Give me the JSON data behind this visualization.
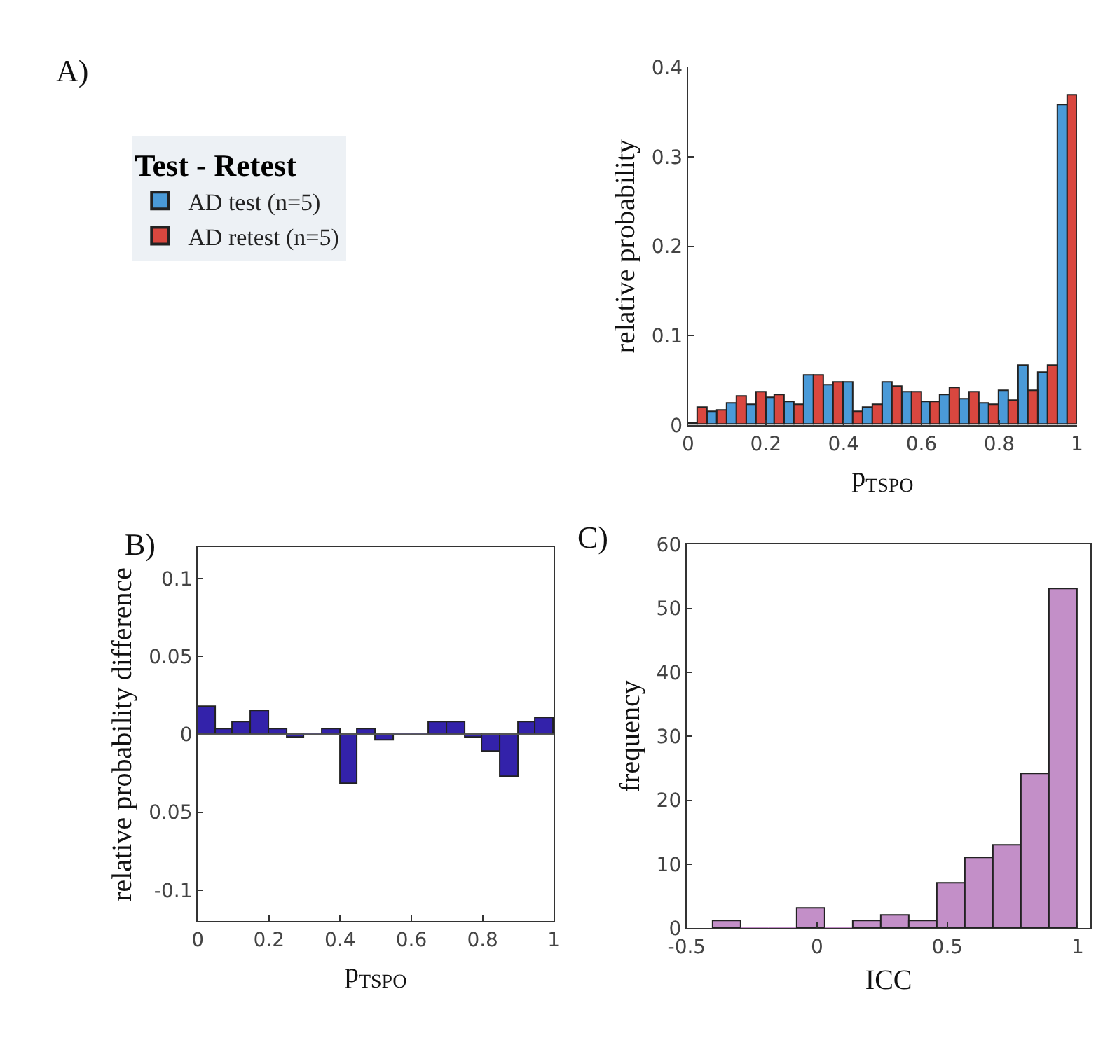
{
  "chart_data": [
    {
      "type": "histogram",
      "ylabel": "relative probability",
      "xlabel": "p$_{TSPO}$",
      "legend_title": "Test - Retest",
      "legend": "left",
      "annotations": [
        "A)"
      ],
      "bins": [
        0,
        0.05,
        0.1,
        0.15,
        0.2,
        0.25,
        0.3,
        0.35,
        0.4,
        0.45,
        0.5,
        0.55,
        0.6,
        0.65,
        0.7,
        0.75,
        0.8,
        0.85,
        0.9,
        0.95,
        1
      ],
      "series": [
        {
          "name": "AD test (n=5)",
          "color": "#4a9ad8",
          "values": [
            0.002,
            0.014,
            0.024,
            0.022,
            0.031,
            0.025,
            0.056,
            0.045,
            0.047,
            0.019,
            0.047,
            0.037,
            0.025,
            0.034,
            0.029,
            0.024,
            0.039,
            0.066,
            0.058,
            0.358
          ]
        },
        {
          "name": "AD retest (n=5)",
          "color": "#d9473f",
          "values": [
            0.02,
            0.017,
            0.032,
            0.037,
            0.034,
            0.022,
            0.056,
            0.048,
            0.015,
            0.022,
            0.043,
            0.037,
            0.025,
            0.042,
            0.037,
            0.022,
            0.027,
            0.039,
            0.066,
            0.368
          ]
        }
      ],
      "xlim": [
        0,
        1
      ],
      "xticks": [
        0,
        0.2,
        0.4,
        0.6,
        0.8,
        1
      ],
      "ylim": [
        0,
        0.4
      ],
      "yticks": [
        0,
        0.1,
        0.2,
        0.3,
        0.4
      ]
    },
    {
      "type": "histogram",
      "ylabel": "relative probability difference",
      "xlabel": "p$_{TSPO}$",
      "annotations": [
        "B)"
      ],
      "bins": [
        0,
        0.05,
        0.1,
        0.15,
        0.2,
        0.25,
        0.3,
        0.35,
        0.4,
        0.45,
        0.5,
        0.55,
        0.6,
        0.65,
        0.7,
        0.75,
        0.8,
        0.85,
        0.9,
        0.95,
        1
      ],
      "values": [
        0.018,
        0.003,
        0.008,
        0.015,
        0.003,
        -0.002,
        0,
        0.003,
        -0.032,
        0.003,
        -0.004,
        0,
        0,
        0.008,
        0.008,
        -0.002,
        -0.011,
        -0.027,
        0.008,
        0.01
      ],
      "color": "#3322aa",
      "xlim": [
        0,
        1
      ],
      "xticks": [
        0,
        0.2,
        0.4,
        0.6,
        0.8,
        1
      ],
      "ylim": [
        -0.12,
        0.12
      ],
      "yticks": [
        {
          "value": -0.1,
          "label": "-0.1"
        },
        {
          "value": -0.05,
          "label": "0.05"
        },
        0,
        0.05,
        0.1
      ]
    },
    {
      "type": "histogram",
      "ylabel": "frequency",
      "xlabel": "ICC",
      "annotations": [
        "C)"
      ],
      "bins": [
        -0.4,
        -0.292,
        -0.185,
        -0.077,
        0.031,
        0.138,
        0.246,
        0.354,
        0.462,
        0.569,
        0.677,
        0.785,
        0.892,
        1.0
      ],
      "values": [
        1,
        0,
        0,
        3,
        0,
        1,
        2,
        1,
        7,
        11,
        13,
        24,
        53
      ],
      "color": "#c38fc8",
      "xlim": [
        -0.5,
        1.05
      ],
      "xticks": [
        -0.5,
        0,
        0.5,
        1
      ],
      "ylim": [
        0,
        60
      ],
      "yticks": [
        0,
        10,
        20,
        30,
        40,
        50,
        60
      ]
    }
  ]
}
